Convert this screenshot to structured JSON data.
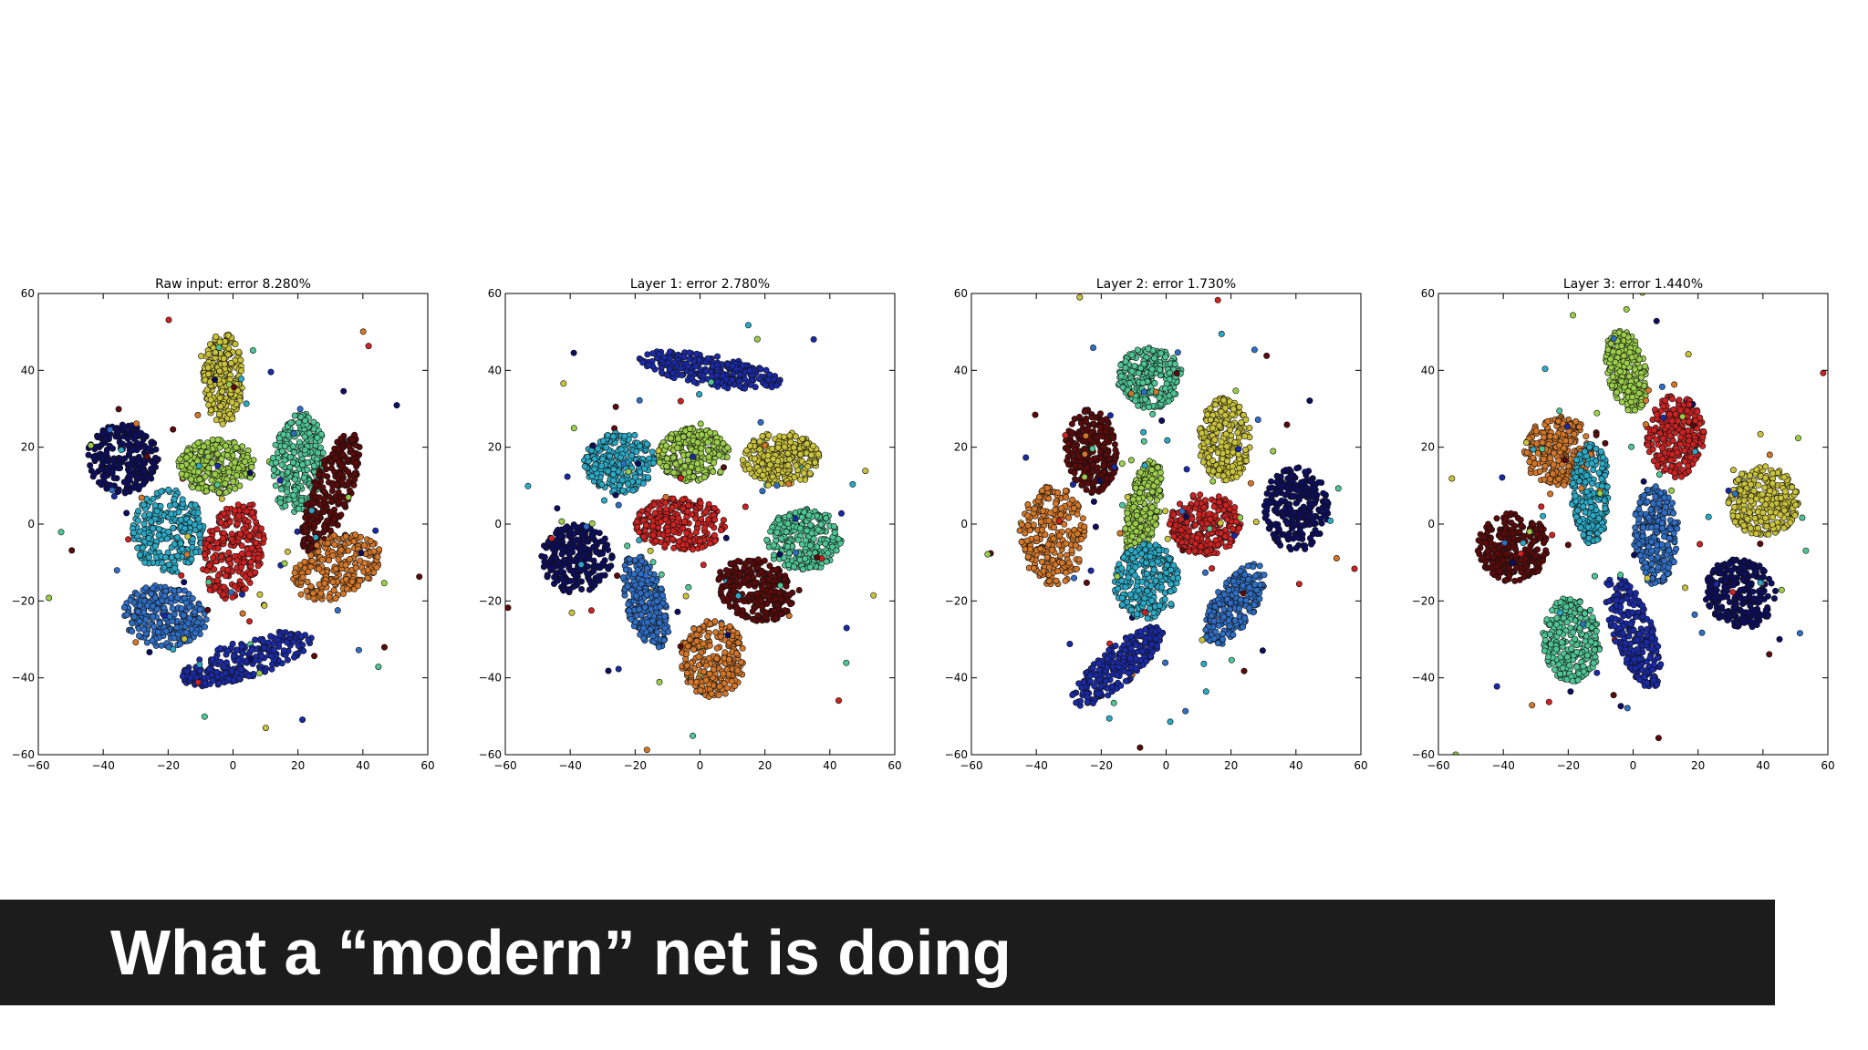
{
  "slide": {
    "title": "What a “modern” net is doing"
  },
  "chart_data": [
    {
      "type": "scatter",
      "title": "Raw input: error 8.280%",
      "xlim": [
        -60,
        60
      ],
      "ylim": [
        -60,
        60
      ],
      "xticks": [
        -60,
        -40,
        -20,
        0,
        20,
        40,
        60
      ],
      "yticks": [
        -60,
        -40,
        -20,
        0,
        20,
        40,
        60
      ],
      "grid": false,
      "series": [
        {
          "color": "#0d0d5e",
          "cx": -34,
          "cy": 17,
          "rx": 11,
          "ry": 9,
          "angle": 0
        },
        {
          "color": "#c9c23b",
          "cx": -3,
          "cy": 38,
          "rx": 6,
          "ry": 12,
          "angle": 0
        },
        {
          "color": "#9acd4a",
          "cx": -5,
          "cy": 15,
          "rx": 12,
          "ry": 7,
          "angle": 0
        },
        {
          "color": "#4fc494",
          "cx": 20,
          "cy": 16,
          "rx": 8,
          "ry": 13,
          "angle": -10
        },
        {
          "color": "#5a0a0a",
          "cx": 30,
          "cy": 8,
          "rx": 6,
          "ry": 17,
          "angle": -25
        },
        {
          "color": "#2ba8c4",
          "cx": -20,
          "cy": -2,
          "rx": 11,
          "ry": 11,
          "angle": 0
        },
        {
          "color": "#cc2222",
          "cx": 0,
          "cy": -7,
          "rx": 9,
          "ry": 13,
          "angle": -20
        },
        {
          "color": "#d2762a",
          "cx": 32,
          "cy": -11,
          "rx": 14,
          "ry": 8,
          "angle": 20
        },
        {
          "color": "#2f6ec4",
          "cx": -21,
          "cy": -24,
          "rx": 13,
          "ry": 8,
          "angle": -5
        },
        {
          "color": "#1a2aa6",
          "cx": 4,
          "cy": -35,
          "rx": 21,
          "ry": 5,
          "angle": 15
        }
      ]
    },
    {
      "type": "scatter",
      "title": "Layer 1: error 2.780%",
      "xlim": [
        -60,
        60
      ],
      "ylim": [
        -60,
        60
      ],
      "xticks": [
        -60,
        -40,
        -20,
        0,
        20,
        40,
        60
      ],
      "yticks": [
        -60,
        -40,
        -20,
        0,
        20,
        40,
        60
      ],
      "grid": false,
      "series": [
        {
          "color": "#1a2aa6",
          "cx": 3,
          "cy": 40,
          "rx": 22,
          "ry": 4,
          "angle": -8
        },
        {
          "color": "#2ba8c4",
          "cx": -25,
          "cy": 16,
          "rx": 11,
          "ry": 8,
          "angle": 0
        },
        {
          "color": "#9acd4a",
          "cx": -2,
          "cy": 18,
          "rx": 11,
          "ry": 7,
          "angle": 0
        },
        {
          "color": "#c9c23b",
          "cx": 25,
          "cy": 17,
          "rx": 12,
          "ry": 7,
          "angle": 0
        },
        {
          "color": "#0d0d5e",
          "cx": -38,
          "cy": -9,
          "rx": 11,
          "ry": 9,
          "angle": 0
        },
        {
          "color": "#cc2222",
          "cx": -6,
          "cy": 0,
          "rx": 14,
          "ry": 7,
          "angle": 0
        },
        {
          "color": "#4fc494",
          "cx": 32,
          "cy": -4,
          "rx": 12,
          "ry": 8,
          "angle": 0
        },
        {
          "color": "#2f6ec4",
          "cx": -17,
          "cy": -20,
          "rx": 6,
          "ry": 13,
          "angle": 20
        },
        {
          "color": "#5a0a0a",
          "cx": 17,
          "cy": -17,
          "rx": 12,
          "ry": 8,
          "angle": -15
        },
        {
          "color": "#d2762a",
          "cx": 4,
          "cy": -35,
          "rx": 10,
          "ry": 10,
          "angle": 0
        }
      ]
    },
    {
      "type": "scatter",
      "title": "Layer 2: error 1.730%",
      "xlim": [
        -60,
        60
      ],
      "ylim": [
        -60,
        60
      ],
      "xticks": [
        -60,
        -40,
        -20,
        0,
        20,
        40,
        60
      ],
      "yticks": [
        -60,
        -40,
        -20,
        0,
        20,
        40,
        60
      ],
      "grid": false,
      "series": [
        {
          "color": "#4fc494",
          "cx": -5,
          "cy": 38,
          "rx": 10,
          "ry": 8,
          "angle": 0
        },
        {
          "color": "#5a0a0a",
          "cx": -23,
          "cy": 19,
          "rx": 8,
          "ry": 11,
          "angle": 10
        },
        {
          "color": "#c9c23b",
          "cx": 18,
          "cy": 22,
          "rx": 8,
          "ry": 11,
          "angle": 0
        },
        {
          "color": "#9acd4a",
          "cx": -7,
          "cy": 4,
          "rx": 5,
          "ry": 13,
          "angle": -15
        },
        {
          "color": "#cc2222",
          "cx": 12,
          "cy": 0,
          "rx": 11,
          "ry": 8,
          "angle": 0
        },
        {
          "color": "#0d0d5e",
          "cx": 40,
          "cy": 4,
          "rx": 10,
          "ry": 11,
          "angle": 0
        },
        {
          "color": "#d2762a",
          "cx": -35,
          "cy": -3,
          "rx": 10,
          "ry": 13,
          "angle": 0
        },
        {
          "color": "#2ba8c4",
          "cx": -6,
          "cy": -15,
          "rx": 10,
          "ry": 10,
          "angle": 0
        },
        {
          "color": "#2f6ec4",
          "cx": 21,
          "cy": -21,
          "rx": 6,
          "ry": 13,
          "angle": -40
        },
        {
          "color": "#1a2aa6",
          "cx": -15,
          "cy": -37,
          "rx": 5,
          "ry": 17,
          "angle": -55
        }
      ]
    },
    {
      "type": "scatter",
      "title": "Layer 3: error 1.440%",
      "xlim": [
        -60,
        60
      ],
      "ylim": [
        -60,
        60
      ],
      "xticks": [
        -60,
        -40,
        -20,
        0,
        20,
        40,
        60
      ],
      "yticks": [
        -60,
        -40,
        -20,
        0,
        20,
        40,
        60
      ],
      "grid": false,
      "series": [
        {
          "color": "#9acd4a",
          "cx": -2,
          "cy": 40,
          "rx": 6,
          "ry": 11,
          "angle": 15
        },
        {
          "color": "#d2762a",
          "cx": -23,
          "cy": 19,
          "rx": 11,
          "ry": 9,
          "angle": 0
        },
        {
          "color": "#cc2222",
          "cx": 13,
          "cy": 23,
          "rx": 9,
          "ry": 11,
          "angle": 0
        },
        {
          "color": "#c9c23b",
          "cx": 40,
          "cy": 6,
          "rx": 11,
          "ry": 9,
          "angle": 0
        },
        {
          "color": "#2ba8c4",
          "cx": -13,
          "cy": 8,
          "rx": 6,
          "ry": 13,
          "angle": 0
        },
        {
          "color": "#2f6ec4",
          "cx": 7,
          "cy": -3,
          "rx": 7,
          "ry": 13,
          "angle": 0
        },
        {
          "color": "#5a0a0a",
          "cx": -37,
          "cy": -6,
          "rx": 11,
          "ry": 9,
          "angle": 0
        },
        {
          "color": "#0d0d5e",
          "cx": 33,
          "cy": -18,
          "rx": 11,
          "ry": 9,
          "angle": -10
        },
        {
          "color": "#4fc494",
          "cx": -19,
          "cy": -30,
          "rx": 9,
          "ry": 11,
          "angle": 0
        },
        {
          "color": "#1a2aa6",
          "cx": 0,
          "cy": -28,
          "rx": 6,
          "ry": 16,
          "angle": 25
        }
      ]
    }
  ]
}
